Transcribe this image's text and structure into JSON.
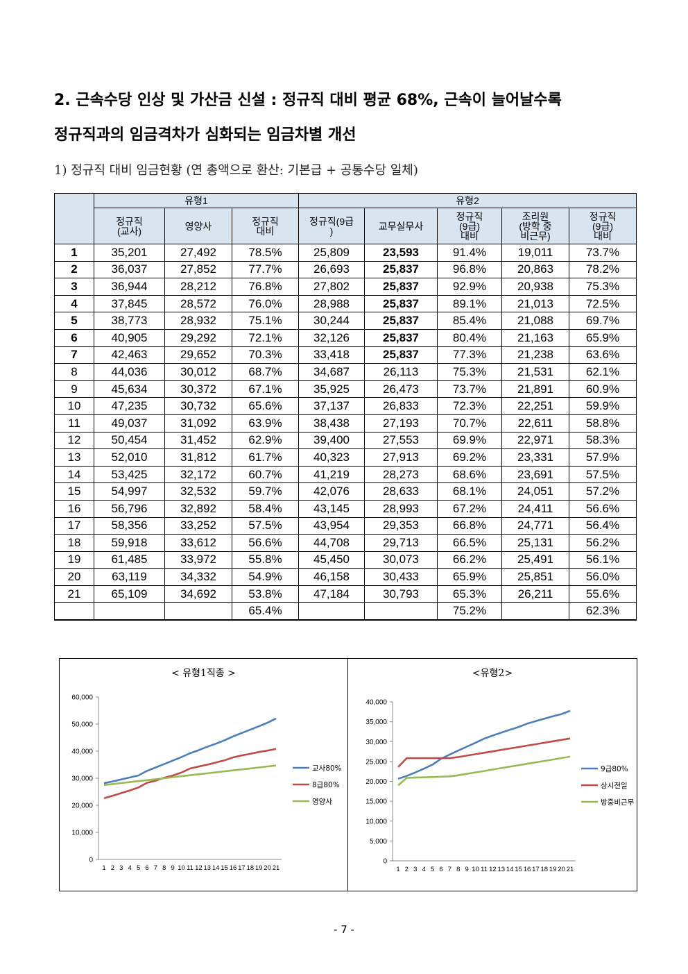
{
  "heading": {
    "line1": "2. 근속수당 인상 및 가산금 신설 : 정규직 대비 평균 68%, 근속이 늘어날수록",
    "line2": "정규직과의 임금격차가 심화되는 임금차별 개선"
  },
  "subheading": "1) 정규직 대비 임금현황 (연 총액으로 환산: 기본급 + 공통수당 일체)",
  "table": {
    "group1": "유형1",
    "group2": "유형2",
    "columns": [
      "정규직\n(교사)",
      "영양사",
      "정규직\n대비",
      "정규직(9급\n)",
      "교무실무사",
      "정규직\n(9급)\n대비",
      "조리원\n(방학 중\n비근무)",
      "정규직\n(9급)\n대비"
    ],
    "rows": [
      [
        "1",
        "35,201",
        "27,492",
        "78.5%",
        "25,809",
        "23,593",
        "91.4%",
        "19,011",
        "73.7%"
      ],
      [
        "2",
        "36,037",
        "27,852",
        "77.7%",
        "26,693",
        "25,837",
        "96.8%",
        "20,863",
        "78.2%"
      ],
      [
        "3",
        "36,944",
        "28,212",
        "76.8%",
        "27,802",
        "25,837",
        "92.9%",
        "20,938",
        "75.3%"
      ],
      [
        "4",
        "37,845",
        "28,572",
        "76.0%",
        "28,988",
        "25,837",
        "89.1%",
        "21,013",
        "72.5%"
      ],
      [
        "5",
        "38,773",
        "28,932",
        "75.1%",
        "30,244",
        "25,837",
        "85.4%",
        "21,088",
        "69.7%"
      ],
      [
        "6",
        "40,905",
        "29,292",
        "72.1%",
        "32,126",
        "25,837",
        "80.4%",
        "21,163",
        "65.9%"
      ],
      [
        "7",
        "42,463",
        "29,652",
        "70.3%",
        "33,418",
        "25,837",
        "77.3%",
        "21,238",
        "63.6%"
      ],
      [
        "8",
        "44,036",
        "30,012",
        "68.7%",
        "34,687",
        "26,113",
        "75.3%",
        "21,531",
        "62.1%"
      ],
      [
        "9",
        "45,634",
        "30,372",
        "67.1%",
        "35,925",
        "26,473",
        "73.7%",
        "21,891",
        "60.9%"
      ],
      [
        "10",
        "47,235",
        "30,732",
        "65.6%",
        "37,137",
        "26,833",
        "72.3%",
        "22,251",
        "59.9%"
      ],
      [
        "11",
        "49,037",
        "31,092",
        "63.9%",
        "38,438",
        "27,193",
        "70.7%",
        "22,611",
        "58.8%"
      ],
      [
        "12",
        "50,454",
        "31,452",
        "62.9%",
        "39,400",
        "27,553",
        "69.9%",
        "22,971",
        "58.3%"
      ],
      [
        "13",
        "52,010",
        "31,812",
        "61.7%",
        "40,323",
        "27,913",
        "69.2%",
        "23,331",
        "57.9%"
      ],
      [
        "14",
        "53,425",
        "32,172",
        "60.7%",
        "41,219",
        "28,273",
        "68.6%",
        "23,691",
        "57.5%"
      ],
      [
        "15",
        "54,997",
        "32,532",
        "59.7%",
        "42,076",
        "28,633",
        "68.1%",
        "24,051",
        "57.2%"
      ],
      [
        "16",
        "56,796",
        "32,892",
        "58.4%",
        "43,145",
        "28,993",
        "67.2%",
        "24,411",
        "56.6%"
      ],
      [
        "17",
        "58,356",
        "33,252",
        "57.5%",
        "43,954",
        "29,353",
        "66.8%",
        "24,771",
        "56.4%"
      ],
      [
        "18",
        "59,918",
        "33,612",
        "56.6%",
        "44,708",
        "29,713",
        "66.5%",
        "25,131",
        "56.2%"
      ],
      [
        "19",
        "61,485",
        "33,972",
        "55.8%",
        "45,450",
        "30,073",
        "66.2%",
        "25,491",
        "56.1%"
      ],
      [
        "20",
        "63,119",
        "34,332",
        "54.9%",
        "46,158",
        "30,433",
        "65.9%",
        "25,851",
        "56.0%"
      ],
      [
        "21",
        "65,109",
        "34,692",
        "53.8%",
        "47,184",
        "30,793",
        "65.3%",
        "26,211",
        "55.6%"
      ]
    ],
    "summary": [
      "",
      "",
      "",
      "65.4%",
      "",
      "",
      "75.2%",
      "",
      "62.3%"
    ]
  },
  "chart_data": [
    {
      "type": "line",
      "title": "< 유형1직종 >",
      "x": [
        1,
        2,
        3,
        4,
        5,
        6,
        7,
        8,
        9,
        10,
        11,
        12,
        13,
        14,
        15,
        16,
        17,
        18,
        19,
        20,
        21
      ],
      "ylim": [
        0,
        60000
      ],
      "yticks": [
        "0",
        "10,000",
        "20,000",
        "30,000",
        "40,000",
        "50,000",
        "60,000"
      ],
      "legend": "right",
      "series": [
        {
          "name": "교사80%",
          "color": "#4a7ebb",
          "values": [
            28161,
            28830,
            29555,
            30276,
            31018,
            32724,
            33970,
            35229,
            36507,
            37788,
            39230,
            40363,
            41608,
            42740,
            43998,
            45437,
            46685,
            47934,
            49188,
            50495,
            52087
          ]
        },
        {
          "name": "8급80%",
          "color": "#be4b48",
          "values": [
            22600,
            23500,
            24500,
            25500,
            26600,
            28300,
            29100,
            30200,
            31000,
            32100,
            33600,
            34300,
            35000,
            35800,
            36600,
            37700,
            38400,
            39000,
            39700,
            40200,
            40800
          ]
        },
        {
          "name": "영양사",
          "color": "#98b954",
          "values": [
            27492,
            27852,
            28212,
            28572,
            28932,
            29292,
            29652,
            30012,
            30372,
            30732,
            31092,
            31452,
            31812,
            32172,
            32532,
            32892,
            33252,
            33612,
            33972,
            34332,
            34692
          ]
        }
      ]
    },
    {
      "type": "line",
      "title": "<유형2>",
      "x": [
        1,
        2,
        3,
        4,
        5,
        6,
        7,
        8,
        9,
        10,
        11,
        12,
        13,
        14,
        15,
        16,
        17,
        18,
        19,
        20,
        21
      ],
      "ylim": [
        0,
        40000
      ],
      "yticks": [
        "0",
        "5,000",
        "10,000",
        "15,000",
        "20,000",
        "25,000",
        "30,000",
        "35,000",
        "40,000"
      ],
      "legend": "right",
      "series": [
        {
          "name": "9급80%",
          "color": "#4a7ebb",
          "values": [
            20647,
            21354,
            22242,
            23190,
            24195,
            25701,
            26734,
            27750,
            28740,
            29710,
            30750,
            31520,
            32258,
            32975,
            33661,
            34516,
            35163,
            35766,
            36360,
            36926,
            37747
          ]
        },
        {
          "name": "상시전일",
          "color": "#be4b48",
          "values": [
            23593,
            25837,
            25837,
            25837,
            25837,
            25837,
            25837,
            26113,
            26473,
            26833,
            27193,
            27553,
            27913,
            28273,
            28633,
            28993,
            29353,
            29713,
            30073,
            30433,
            30793
          ]
        },
        {
          "name": "방중비근무",
          "color": "#98b954",
          "values": [
            19011,
            20863,
            20938,
            21013,
            21088,
            21163,
            21238,
            21531,
            21891,
            22251,
            22611,
            22971,
            23331,
            23691,
            24051,
            24411,
            24771,
            25131,
            25491,
            25851,
            26211
          ]
        }
      ]
    }
  ],
  "page_number": "- 7 -"
}
